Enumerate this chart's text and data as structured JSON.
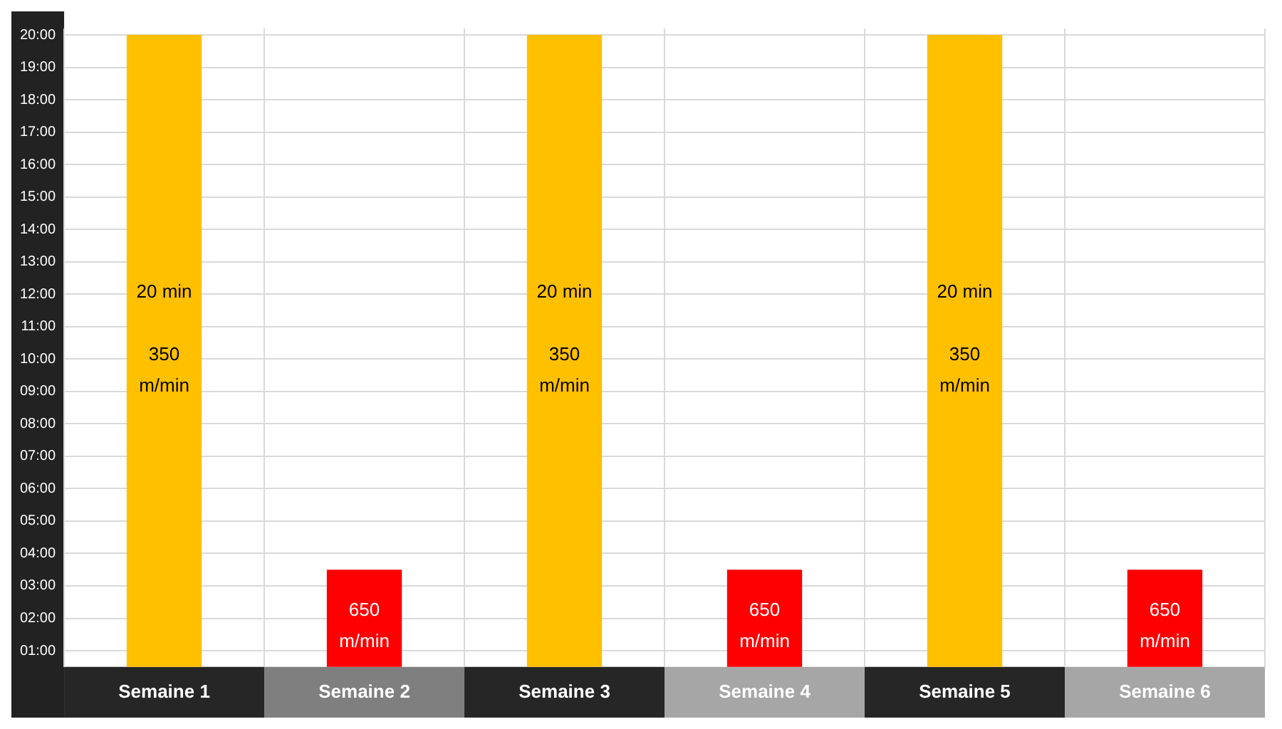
{
  "chart_data": {
    "type": "bar",
    "categories": [
      "Semaine 1",
      "Semaine 2",
      "Semaine 3",
      "Semaine 4",
      "Semaine 5",
      "Semaine 6"
    ],
    "series": [
      {
        "color": "#ffc000",
        "values": [
          20,
          null,
          20,
          null,
          20,
          null
        ],
        "value_labels": [
          "20 min\n\n350\nm/min",
          null,
          "20 min\n\n350\nm/min",
          null,
          "20 min\n\n350\nm/min",
          null
        ]
      },
      {
        "color": "#ff0000",
        "values": [
          null,
          3.5,
          null,
          3.5,
          null,
          3.5
        ]
      }
    ],
    "annotations": [
      "650\nm/min",
      "650\nm/min",
      "650\nm/min"
    ],
    "ylim": [
      0.5,
      20.2
    ],
    "yticks": [
      {
        "value": 1,
        "label": "01:00"
      },
      {
        "value": 2,
        "label": "02:00"
      },
      {
        "value": 3,
        "label": "03:00"
      },
      {
        "value": 4,
        "label": "04:00"
      },
      {
        "value": 5,
        "label": "05:00"
      },
      {
        "value": 6,
        "label": "06:00"
      },
      {
        "value": 7,
        "label": "07:00"
      },
      {
        "value": 8,
        "label": "08:00"
      },
      {
        "value": 9,
        "label": "09:00"
      },
      {
        "value": 10,
        "label": "10:00"
      },
      {
        "value": 11,
        "label": "11:00"
      },
      {
        "value": 12,
        "label": "12:00"
      },
      {
        "value": 13,
        "label": "13:00"
      },
      {
        "value": 14,
        "label": "14:00"
      },
      {
        "value": 15,
        "label": "15:00"
      },
      {
        "value": 16,
        "label": "16:00"
      },
      {
        "value": 17,
        "label": "17:00"
      },
      {
        "value": 18,
        "label": "18:00"
      },
      {
        "value": 19,
        "label": "19:00"
      },
      {
        "value": 20,
        "label": "20:00"
      }
    ],
    "grid": true,
    "legend": false
  }
}
